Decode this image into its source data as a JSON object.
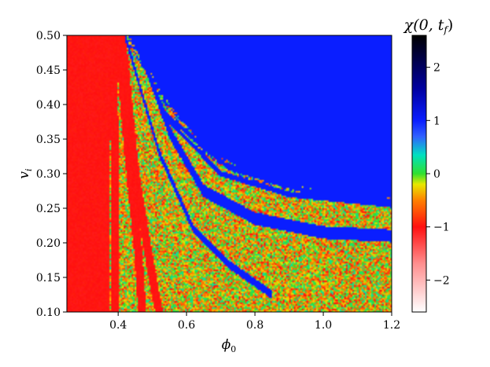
{
  "chart_data": {
    "type": "heatmap",
    "title": "",
    "xlabel": "ϕ",
    "xlabel_sub": "0",
    "ylabel": "v",
    "ylabel_sub": "i",
    "xlim": [
      0.25,
      1.2
    ],
    "ylim": [
      0.1,
      0.5
    ],
    "x_ticks": [
      0.4,
      0.6,
      0.8,
      1.0,
      1.2
    ],
    "x_tick_labels": [
      "0.4",
      "0.6",
      "0.8",
      "1.0",
      "1.2"
    ],
    "y_ticks": [
      0.1,
      0.15,
      0.2,
      0.25,
      0.3,
      0.35,
      0.4,
      0.45,
      0.5
    ],
    "y_tick_labels": [
      "0.10",
      "0.15",
      "0.20",
      "0.25",
      "0.30",
      "0.35",
      "0.40",
      "0.45",
      "0.50"
    ],
    "grid": false,
    "colorbar": {
      "title": "χ(0, t_f)",
      "title_parts": {
        "main": "χ(0, t",
        "sub": "f",
        "end": ")"
      },
      "range": [
        -2.6,
        2.6
      ],
      "ticks": [
        -2,
        -1,
        0,
        1,
        2
      ],
      "tick_labels": [
        "−2",
        "−1",
        "0",
        "1",
        "2"
      ],
      "stops": [
        {
          "value": -2.6,
          "color": "#ffffff"
        },
        {
          "value": -1.7,
          "color": "#ff9090"
        },
        {
          "value": -1.0,
          "color": "#ff1010"
        },
        {
          "value": -0.5,
          "color": "#ff8000"
        },
        {
          "value": -0.2,
          "color": "#e8e800"
        },
        {
          "value": 0.0,
          "color": "#30e030"
        },
        {
          "value": 0.35,
          "color": "#00e0c0"
        },
        {
          "value": 0.7,
          "color": "#3060ff"
        },
        {
          "value": 1.0,
          "color": "#0a1eff"
        },
        {
          "value": 1.6,
          "color": "#0000a0"
        },
        {
          "value": 2.6,
          "color": "#000000"
        }
      ]
    },
    "regions": {
      "red_strip_phi": [
        0.25,
        0.375
      ],
      "blue_region_boundary": [
        [
          0.43,
          0.5
        ],
        [
          0.55,
          0.4
        ],
        [
          0.65,
          0.34
        ],
        [
          0.8,
          0.295
        ],
        [
          1.0,
          0.275
        ],
        [
          1.2,
          0.265
        ]
      ],
      "blue_bands": [
        {
          "points": [
            [
              0.45,
              0.5
            ],
            [
              0.55,
              0.36
            ],
            [
              0.65,
              0.275
            ],
            [
              0.8,
              0.235
            ],
            [
              1.0,
              0.215
            ],
            [
              1.2,
              0.21
            ]
          ],
          "value": 1.0
        },
        {
          "points": [
            [
              0.44,
              0.5
            ],
            [
              0.54,
              0.38
            ],
            [
              0.7,
              0.3
            ],
            [
              0.9,
              0.27
            ],
            [
              1.2,
              0.255
            ]
          ],
          "value": 1.0
        },
        {
          "points": [
            [
              0.44,
              0.5
            ],
            [
              0.54,
              0.385
            ],
            [
              0.72,
              0.31
            ],
            [
              0.95,
              0.275
            ],
            [
              1.2,
              0.26
            ]
          ],
          "value": 1.0
        },
        {
          "points": [
            [
              0.42,
              0.5
            ],
            [
              0.52,
              0.33
            ],
            [
              0.62,
              0.22
            ],
            [
              0.72,
              0.17
            ],
            [
              0.85,
              0.125
            ]
          ],
          "value": 1.0
        }
      ],
      "red_ridges": [
        {
          "points": [
            [
              0.41,
              0.5
            ],
            [
              0.45,
              0.3
            ],
            [
              0.5,
              0.15
            ],
            [
              0.52,
              0.1
            ]
          ],
          "value": -1.0
        },
        {
          "points": [
            [
              0.4,
              0.5
            ],
            [
              0.43,
              0.33
            ],
            [
              0.46,
              0.18
            ],
            [
              0.47,
              0.1
            ]
          ],
          "value": -1.0
        },
        {
          "points": [
            [
              0.385,
              0.5
            ],
            [
              0.39,
              0.3
            ],
            [
              0.39,
              0.1
            ]
          ],
          "value": -1.0
        }
      ],
      "background_value_range": [
        -0.8,
        0.3
      ]
    }
  }
}
